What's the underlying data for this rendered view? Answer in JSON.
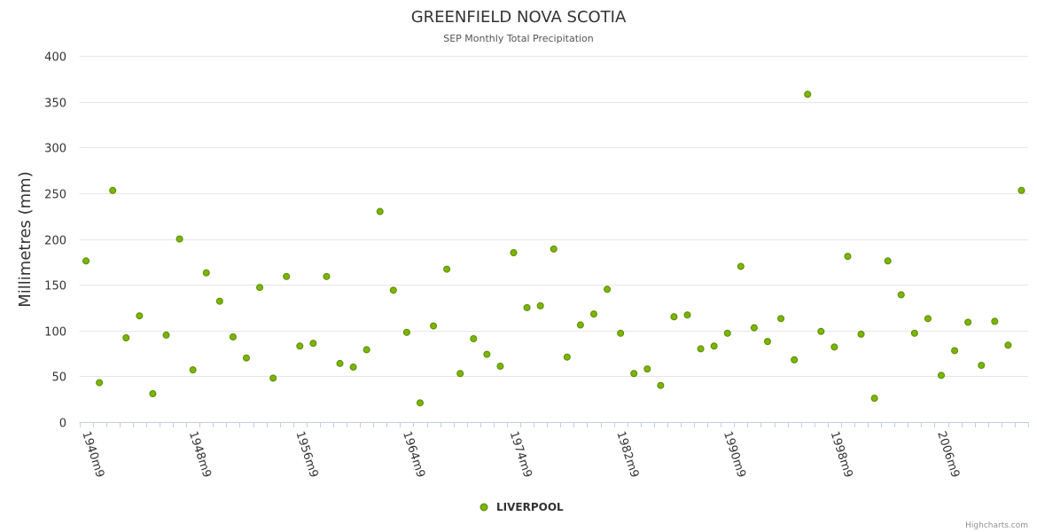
{
  "chart_data": {
    "type": "scatter",
    "title": "GREENFIELD NOVA SCOTIA",
    "subtitle": "SEP Monthly Total Precipitation",
    "ylabel": "Millimetres (mm)",
    "xlabel": "",
    "ylim": [
      0,
      400
    ],
    "yticks": [
      0,
      50,
      100,
      150,
      200,
      250,
      300,
      350,
      400
    ],
    "grid": true,
    "legend_position": "bottom-center",
    "credits": "Highcharts.com",
    "x_tick_labels": [
      "1940m9",
      "1948m9",
      "1956m9",
      "1964m9",
      "1974m9",
      "1982m9",
      "1990m9",
      "1998m9",
      "2006m9"
    ],
    "categories": [
      "1940m9",
      "1941m9",
      "1942m9",
      "1943m9",
      "1944m9",
      "1945m9",
      "1946m9",
      "1947m9",
      "1948m9",
      "1949m9",
      "1950m9",
      "1951m9",
      "1952m9",
      "1953m9",
      "1954m9",
      "1955m9",
      "1956m9",
      "1957m9",
      "1958m9",
      "1959m9",
      "1960m9",
      "1961m9",
      "1962m9",
      "1963m9",
      "1964m9",
      "1965m9",
      "1966m9",
      "1967m9",
      "1968m9",
      "1969m9",
      "1972m9",
      "1973m9",
      "1974m9",
      "1975m9",
      "1976m9",
      "1977m9",
      "1978m9",
      "1979m9",
      "1980m9",
      "1981m9",
      "1982m9",
      "1983m9",
      "1984m9",
      "1985m9",
      "1986m9",
      "1987m9",
      "1988m9",
      "1989m9",
      "1990m9",
      "1991m9",
      "1992m9",
      "1993m9",
      "1994m9",
      "1995m9",
      "1996m9",
      "1997m9",
      "1998m9",
      "1999m9",
      "2000m9",
      "2001m9",
      "2002m9",
      "2003m9",
      "2004m9",
      "2005m9",
      "2006m9",
      "2007m9",
      "2008m9",
      "2009m9",
      "2010m9",
      "2011m9",
      "2012m9"
    ],
    "series": [
      {
        "name": "LIVERPOOL",
        "color": "#7cb500",
        "values": [
          176,
          43,
          253,
          92,
          116,
          31,
          95,
          200,
          57,
          163,
          132,
          93,
          70,
          147,
          48,
          159,
          83,
          86,
          159,
          64,
          60,
          79,
          230,
          144,
          98,
          21,
          105,
          167,
          53,
          91,
          74,
          61,
          185,
          125,
          127,
          189,
          71,
          106,
          118,
          145,
          97,
          53,
          58,
          40,
          115,
          117,
          80,
          83,
          97,
          170,
          103,
          88,
          113,
          68,
          358,
          99,
          82,
          181,
          96,
          26,
          176,
          139,
          97,
          113,
          51,
          78,
          109,
          62,
          110,
          84,
          253
        ]
      }
    ]
  }
}
